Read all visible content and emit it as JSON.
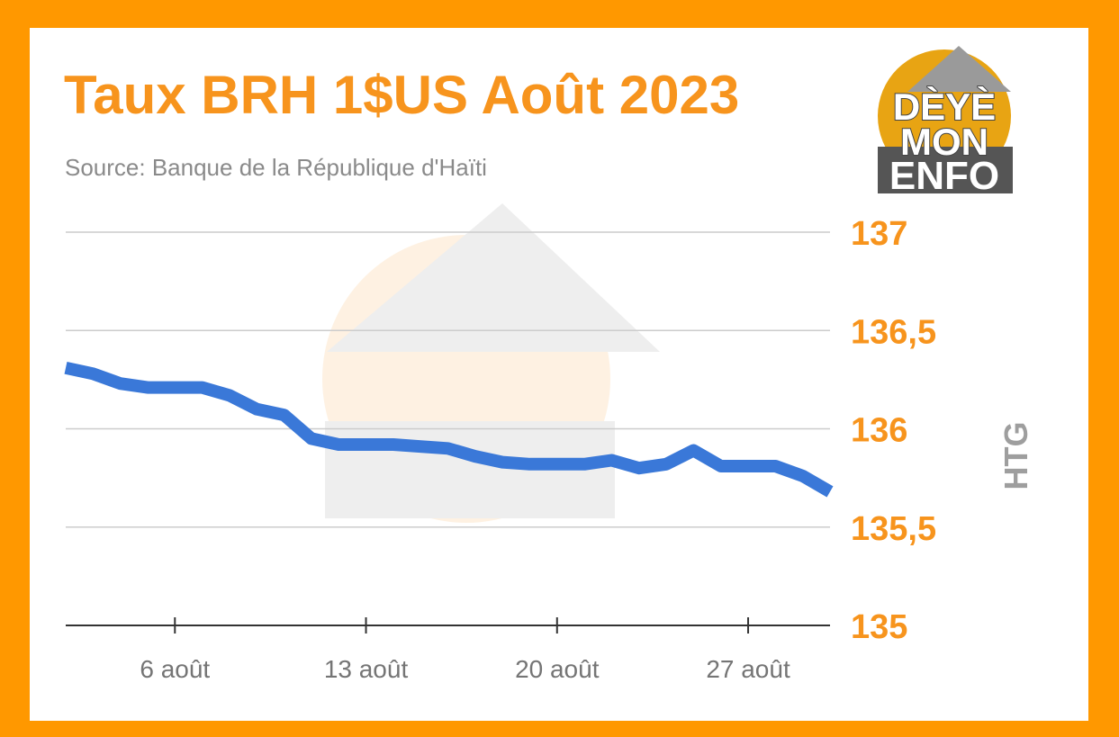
{
  "header": {
    "title": "Taux BRH 1$US Août 2023",
    "subtitle": "Source: Banque de la République d'Haïti"
  },
  "logo": {
    "line1": "DÈYÈ",
    "line2": "MON",
    "line3": "ENFO"
  },
  "colors": {
    "frame": "#ff9800",
    "accent": "#f7941d",
    "line": "#3a78d8",
    "grid": "#cccccc"
  },
  "chart_data": {
    "type": "line",
    "title": "Taux BRH 1$US Août 2023",
    "subtitle": "Source: Banque de la République d'Haïti",
    "ylabel": "HTG",
    "xlabel": "",
    "y_axis_side": "right",
    "ylim": [
      135,
      137
    ],
    "yticks": [
      135,
      135.5,
      136,
      136.5,
      137
    ],
    "ytick_labels": [
      "135",
      "135,5",
      "136",
      "136,5",
      "137"
    ],
    "xlim": [
      2,
      30
    ],
    "xticks": [
      6,
      13,
      20,
      27
    ],
    "xtick_labels": [
      "6 août",
      "13 août",
      "20 août",
      "27 août"
    ],
    "grid": true,
    "legend": "none",
    "series": [
      {
        "x": [
          2,
          3,
          4,
          5,
          6,
          7,
          8,
          9,
          10,
          11,
          12,
          13,
          14,
          15,
          16,
          17,
          18,
          19,
          20,
          21,
          22,
          23,
          24,
          25,
          26,
          27,
          28,
          29,
          30
        ],
        "values": [
          136.31,
          136.28,
          136.23,
          136.21,
          136.21,
          136.21,
          136.17,
          136.1,
          136.07,
          135.95,
          135.92,
          135.92,
          135.92,
          135.91,
          135.9,
          135.86,
          135.83,
          135.82,
          135.82,
          135.82,
          135.84,
          135.8,
          135.82,
          135.89,
          135.81,
          135.81,
          135.81,
          135.76,
          135.68
        ]
      }
    ]
  }
}
